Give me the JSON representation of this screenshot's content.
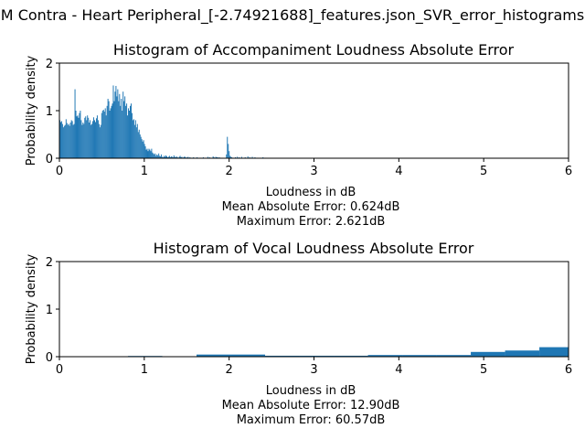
{
  "suptitle": "M Contra - Heart Peripheral_[-2.74921688]_features.json_SVR_error_histograms",
  "chart_data": [
    {
      "type": "bar",
      "title": "Histogram of Accompaniment Loudness Absolute Error",
      "xlabel": "Loudness in dB",
      "ylabel": "Probability density",
      "notes": [
        "Mean Absolute Error: 0.624dB",
        "Maximum Error: 2.621dB"
      ],
      "xlim": [
        0,
        6
      ],
      "ylim": [
        0,
        2
      ],
      "xticks": [
        "0",
        "1",
        "2",
        "3",
        "4",
        "5",
        "6"
      ],
      "yticks": [
        "0",
        "1",
        "2"
      ],
      "bin_width": 0.0105,
      "bins_from": 0,
      "values": [
        0.8,
        0.76,
        0.78,
        0.72,
        0.65,
        0.68,
        0.7,
        0.82,
        0.74,
        0.7,
        0.72,
        0.68,
        0.75,
        0.8,
        0.78,
        0.7,
        0.72,
        1.45,
        1.0,
        0.88,
        0.9,
        0.85,
        0.95,
        1.0,
        0.8,
        0.7,
        0.75,
        0.72,
        0.85,
        0.88,
        0.8,
        0.9,
        0.85,
        0.75,
        0.8,
        0.7,
        0.72,
        0.78,
        0.86,
        0.8,
        0.76,
        0.84,
        0.9,
        0.8,
        0.72,
        0.65,
        0.7,
        0.95,
        1.0,
        1.02,
        0.98,
        1.05,
        0.9,
        1.1,
        1.25,
        1.2,
        1.0,
        1.05,
        1.1,
        1.15,
        1.53,
        1.2,
        1.4,
        1.52,
        1.3,
        1.45,
        1.2,
        1.35,
        1.1,
        1.25,
        1.0,
        1.4,
        1.2,
        1.3,
        1.1,
        1.15,
        0.9,
        1.05,
        1.0,
        1.1,
        1.15,
        0.95,
        0.8,
        0.82,
        0.7,
        0.8,
        0.65,
        0.72,
        0.55,
        0.6,
        0.5,
        0.45,
        0.4,
        0.35,
        0.38,
        0.3,
        0.25,
        0.18,
        0.2,
        0.15,
        0.2,
        0.18,
        0.15,
        0.2,
        0.12,
        0.1,
        0.08,
        0.1,
        0.05,
        0.08,
        0.06,
        0.1,
        0.05,
        0.04,
        0.08,
        0.03,
        0.02,
        0.05,
        0.03,
        0.06,
        0.04,
        0.02,
        0.03,
        0.05,
        0.02,
        0.04,
        0.03,
        0.02,
        0.06,
        0.03,
        0.02,
        0.04,
        0.02,
        0.01,
        0.03,
        0.05,
        0.02,
        0.03,
        0.01,
        0.02,
        0.04,
        0.02,
        0.01,
        0.02,
        0.03,
        0.01,
        0.02,
        0.01,
        0.0,
        0.01,
        0.02,
        0.0,
        0.01,
        0.0,
        0.02,
        0.01,
        0.0,
        0.0,
        0.01,
        0.0,
        0.0,
        0.02,
        0.0,
        0.01,
        0.0,
        0.0,
        0.03,
        0.0,
        0.02,
        0.01,
        0.0,
        0.0,
        0.04,
        0.02,
        0.0,
        0.03,
        0.02,
        0.02,
        0.01,
        0.02,
        0.0,
        0.0,
        0.01,
        0.0,
        0.0,
        0.0,
        0.0,
        0.08,
        0.45,
        0.3,
        0.15,
        0.05,
        0.03,
        0.02,
        0.0,
        0.01,
        0.0,
        0.02,
        0.0,
        0.03,
        0.0,
        0.02,
        0.01,
        0.0,
        0.03,
        0.0,
        0.0,
        0.01,
        0.02,
        0.0,
        0.0,
        0.04,
        0.0,
        0.02,
        0.0,
        0.0,
        0.03,
        0.0,
        0.0,
        0.02,
        0.0,
        0.0,
        0.01,
        0.0,
        0.0,
        0.0,
        0.0,
        0.0,
        0.02,
        0.0,
        0.0,
        0.01
      ]
    },
    {
      "type": "bar",
      "title": "Histogram of Vocal Loudness Absolute Error",
      "xlabel": "Loudness in dB",
      "ylabel": "Probability density",
      "notes": [
        "Mean Absolute Error: 12.90dB",
        "Maximum Error: 60.57dB"
      ],
      "xlim": [
        0,
        6
      ],
      "ylim": [
        0,
        2
      ],
      "xticks": [
        "0",
        "1",
        "2",
        "3",
        "4",
        "5",
        "6"
      ],
      "yticks": [
        "0",
        "1",
        "2"
      ],
      "bin_width": 0.404,
      "bins_from": 0,
      "values": [
        0.0,
        0.0,
        0.015,
        0.0,
        0.045,
        0.045,
        0.02,
        0.02,
        0.02,
        0.035,
        0.035,
        0.035,
        0.1,
        0.13,
        0.2
      ]
    }
  ],
  "colors": {
    "bar": "#1f77b4",
    "axes": "#000000",
    "background": "#ffffff"
  }
}
